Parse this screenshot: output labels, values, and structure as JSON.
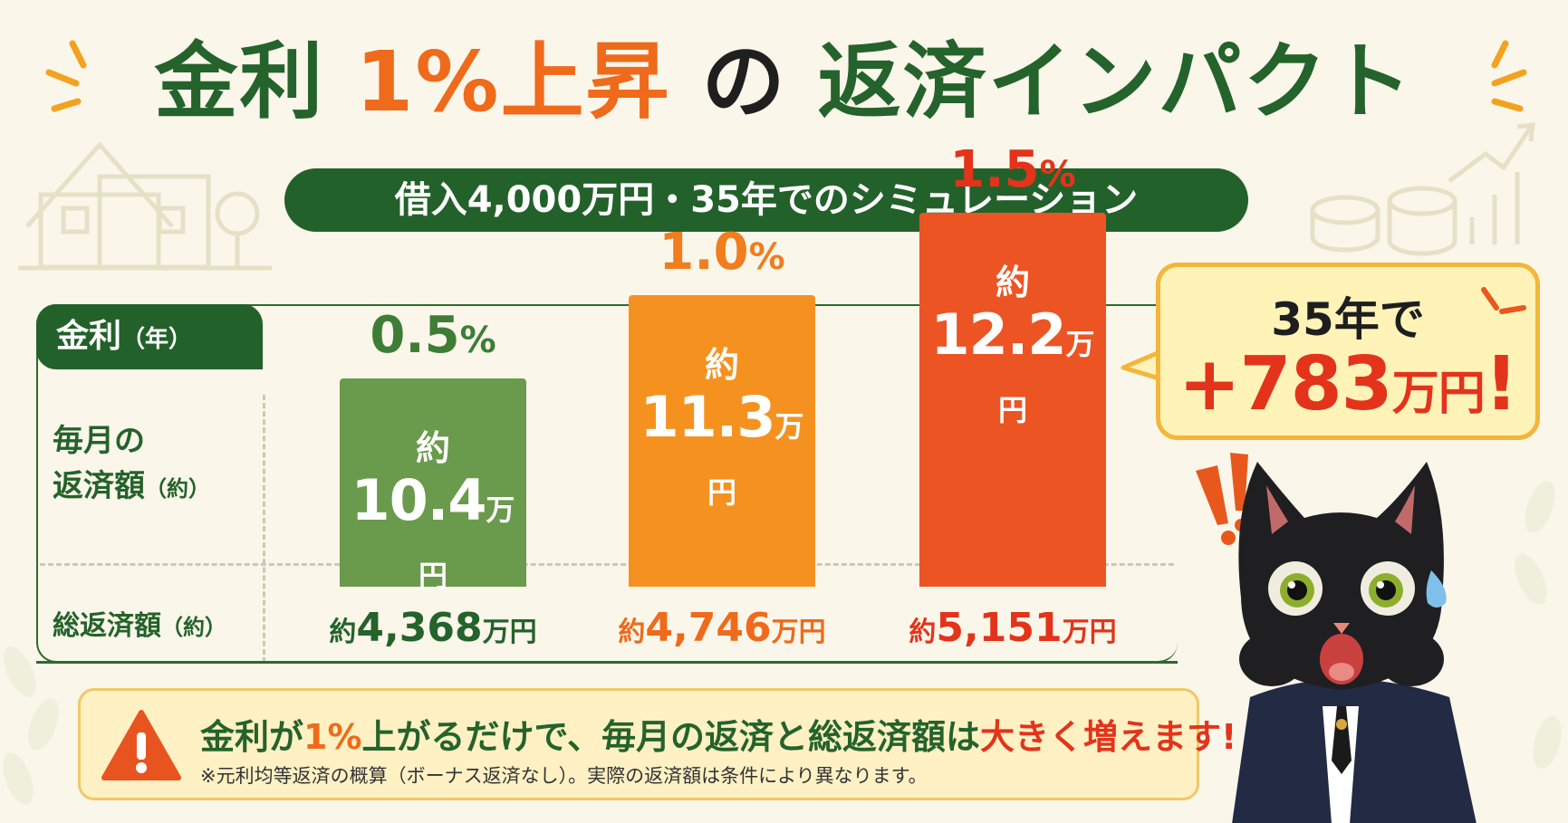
{
  "title": {
    "part1": "金利",
    "part2": "1%上昇",
    "part3": "の",
    "part4": "返済インパクト"
  },
  "subtitle": "借入4,000万円・35年でのシミュレーション",
  "table": {
    "rate_label": "金利",
    "rate_label_unit": "（年）",
    "monthly_label_line1": "毎月の",
    "monthly_label_line2": "返済額",
    "monthly_label_suffix": "（約）",
    "total_label": "総返済額",
    "total_label_suffix": "（約）"
  },
  "callout": {
    "line1": "35年で",
    "line2_value": "+783",
    "line2_unit": "万円",
    "line2_mark": "!"
  },
  "warning": {
    "message_a": "金利が",
    "message_b": "1%",
    "message_c": "上がるだけで、毎月の返済と総返済額は",
    "message_d": "大きく増えます!",
    "note": "※元利均等返済の概算（ボーナス返済なし）。実際の返済額は条件により異なります。"
  },
  "chart_data": {
    "type": "bar",
    "categories": [
      "0.5%",
      "1.0%",
      "1.5%"
    ],
    "rate_labels": [
      {
        "num": "0.5",
        "pct": "%"
      },
      {
        "num": "1.0",
        "pct": "%"
      },
      {
        "num": "1.5",
        "pct": "%"
      }
    ],
    "monthly_prefix": "約",
    "monthly_values": [
      10.4,
      11.3,
      12.2
    ],
    "monthly_display": [
      "10.4",
      "11.3",
      "12.2"
    ],
    "monthly_unit": "万円",
    "total_prefix": "約",
    "total_display": [
      "4,368",
      "4,746",
      "5,151"
    ],
    "total_values": [
      4368,
      4746,
      5151
    ],
    "total_unit": "万円",
    "colors": [
      "#6a9a4c",
      "#f5921f",
      "#ec5424"
    ],
    "label_colors": [
      "#3e7d36",
      "#f07d1e",
      "#e3341b"
    ],
    "total_colors": [
      "#24632b",
      "#ef6a1b",
      "#e3341b"
    ],
    "xlabel": "",
    "ylabel": ""
  },
  "colors": {
    "green": "#24632b",
    "orange": "#ef6a1b",
    "red": "#e3341b",
    "background": "#fbf6ea"
  }
}
